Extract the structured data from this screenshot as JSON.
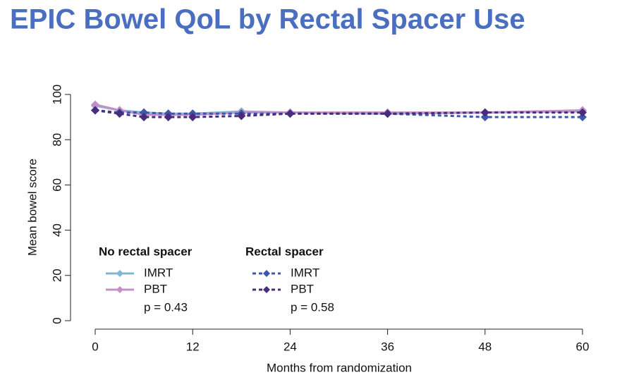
{
  "chart_data": {
    "type": "line",
    "title": "EPIC Bowel QoL by Rectal Spacer Use",
    "x_label": "Months from randomization",
    "y_label": "Mean bowel score",
    "x": [
      0,
      3,
      6,
      9,
      12,
      18,
      24,
      36,
      48,
      60
    ],
    "xlim": [
      0,
      60
    ],
    "xticks": [
      0,
      12,
      24,
      36,
      48,
      60
    ],
    "ylim": [
      0,
      100
    ],
    "yticks": [
      0,
      20,
      40,
      60,
      80,
      100
    ],
    "groups": [
      {
        "title": "No rectal spacer",
        "note": "p = 0.43",
        "series": [
          {
            "name": "IMRT",
            "color": "#7fb6d2",
            "style": "solid",
            "values": [
              95,
              93,
              92,
              91.5,
              91.5,
              92.5,
              92,
              91.5,
              92,
              92.5
            ]
          },
          {
            "name": "PBT",
            "color": "#c58fc8",
            "style": "solid",
            "values": [
              95.5,
              93,
              91,
              91,
              91,
              92,
              92,
              92,
              92,
              93
            ]
          }
        ]
      },
      {
        "title": "Rectal spacer",
        "note": "p = 0.58",
        "series": [
          {
            "name": "IMRT",
            "color": "#3d57ad",
            "style": "dashed",
            "values": [
              93,
              92,
              92,
              91.5,
              91.5,
              91.5,
              91.5,
              91.5,
              90,
              90
            ]
          },
          {
            "name": "PBT",
            "color": "#4b2b7c",
            "style": "dashed",
            "values": [
              93,
              91.5,
              90,
              90,
              90,
              90.5,
              91.5,
              91.5,
              92,
              92
            ]
          }
        ]
      }
    ]
  }
}
